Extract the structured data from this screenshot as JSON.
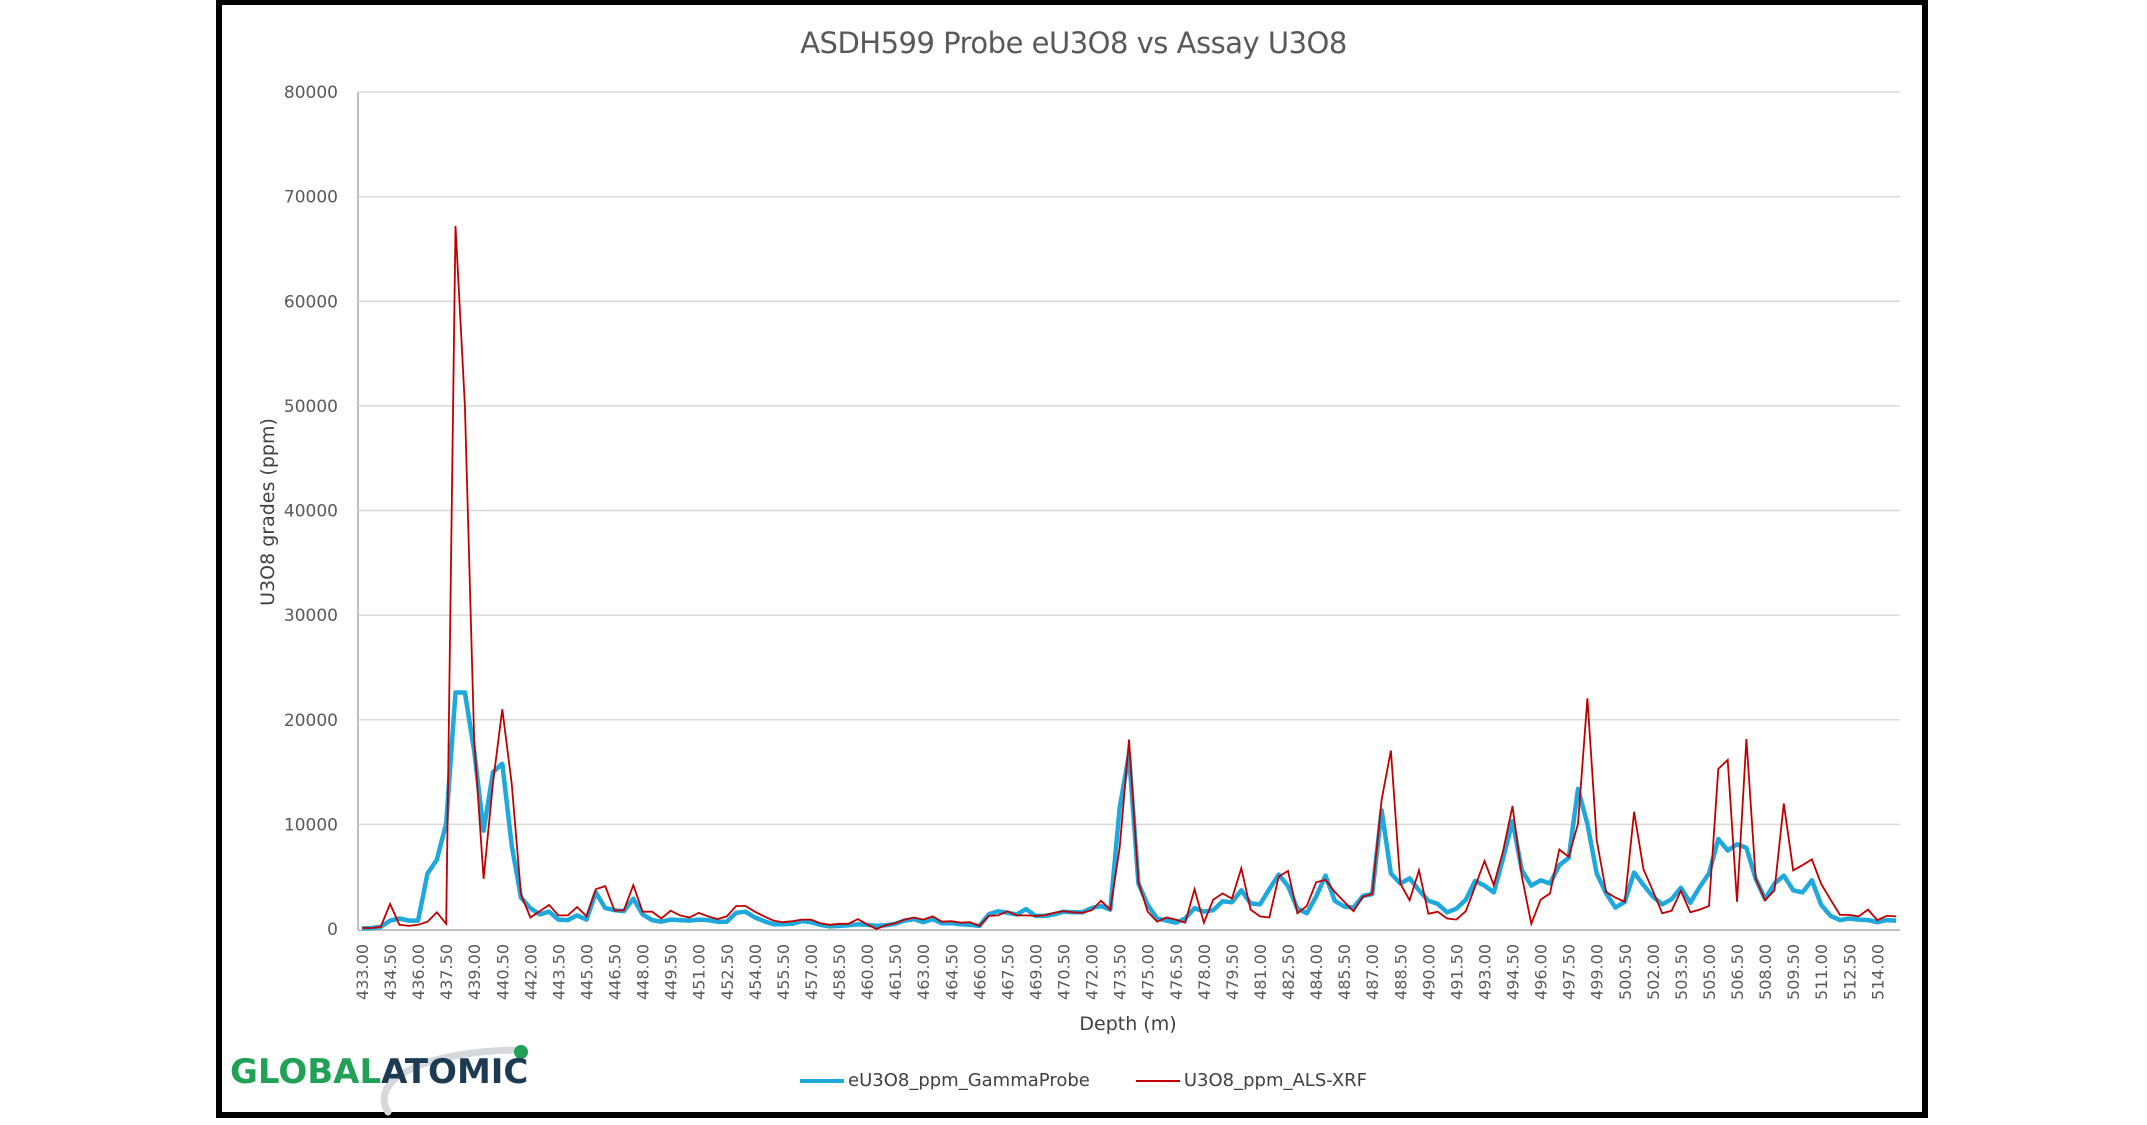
{
  "chart_data": {
    "type": "line",
    "title": "ASDH599 Probe eU3O8 vs Assay U3O8",
    "xlabel": "Depth (m)",
    "ylabel": "U3O8 grades (ppm)",
    "ylim": [
      0,
      80000
    ],
    "yticks": [
      0,
      10000,
      20000,
      30000,
      40000,
      50000,
      60000,
      70000,
      80000
    ],
    "xtick_labels": [
      "433.00",
      "434.50",
      "436.00",
      "437.50",
      "439.00",
      "440.50",
      "442.00",
      "443.50",
      "445.00",
      "446.50",
      "448.00",
      "449.50",
      "451.00",
      "452.50",
      "454.00",
      "455.50",
      "457.00",
      "458.50",
      "460.00",
      "461.50",
      "463.00",
      "464.50",
      "466.00",
      "467.50",
      "469.00",
      "470.50",
      "472.00",
      "473.50",
      "475.00",
      "476.50",
      "478.00",
      "479.50",
      "481.00",
      "482.50",
      "484.00",
      "485.50",
      "487.00",
      "488.50",
      "490.00",
      "491.50",
      "493.00",
      "494.50",
      "496.00",
      "497.50",
      "499.00",
      "500.50",
      "502.00",
      "503.50",
      "505.00",
      "506.50",
      "508.00",
      "509.50",
      "511.00",
      "512.50",
      "514.00"
    ],
    "grid": true,
    "legend_position": "bottom",
    "x_start": 433.0,
    "x_step": 0.5,
    "series": [
      {
        "name": "eU3O8_ppm_GammaProbe",
        "color": "#1ea8dc",
        "values": [
          50,
          100,
          200,
          800,
          1000,
          800,
          800,
          5300,
          6600,
          10100,
          22600,
          22600,
          17000,
          9400,
          15000,
          15800,
          8000,
          3000,
          2000,
          1400,
          1650,
          900,
          850,
          1300,
          900,
          3500,
          2000,
          1800,
          1700,
          2900,
          1400,
          850,
          700,
          900,
          850,
          800,
          900,
          850,
          700,
          700,
          1550,
          1650,
          1100,
          750,
          450,
          450,
          500,
          750,
          650,
          400,
          250,
          300,
          350,
          450,
          400,
          300,
          350,
          500,
          800,
          950,
          650,
          950,
          550,
          550,
          450,
          400,
          300,
          1400,
          1700,
          1550,
          1400,
          1900,
          1250,
          1250,
          1400,
          1650,
          1600,
          1600,
          2000,
          2200,
          1850,
          11600,
          16700,
          4350,
          2300,
          1000,
          800,
          600,
          1000,
          2000,
          1650,
          1800,
          2650,
          2550,
          3700,
          2450,
          2350,
          3800,
          5200,
          4100,
          1950,
          1500,
          3100,
          5100,
          2700,
          2150,
          2050,
          3150,
          3350,
          11350,
          5300,
          4350,
          4850,
          3700,
          2700,
          2400,
          1600,
          1950,
          2800,
          4600,
          4150,
          3500,
          6800,
          10300,
          5600,
          4150,
          4650,
          4350,
          6100,
          6800,
          13400,
          10050,
          5300,
          3400,
          2050,
          2600,
          5400,
          4200,
          3100,
          2350,
          2850,
          3950,
          2500,
          4000,
          5300,
          8600,
          7500,
          8100,
          7750,
          4800,
          2850,
          4350,
          5100,
          3700,
          3500,
          4650,
          2300,
          1250,
          850,
          1000,
          900,
          850,
          650,
          850,
          800
        ]
      },
      {
        "name": "U3O8_ppm_ALS-XRF",
        "color": "#c00000",
        "values": [
          100,
          100,
          200,
          2400,
          400,
          300,
          400,
          700,
          1600,
          500,
          67200,
          50000,
          18000,
          4800,
          14000,
          21000,
          13900,
          3300,
          1100,
          1700,
          2300,
          1300,
          1300,
          2100,
          1200,
          3800,
          4100,
          1750,
          1800,
          4200,
          1650,
          1650,
          1000,
          1750,
          1300,
          1100,
          1550,
          1200,
          950,
          1200,
          2200,
          2200,
          1650,
          1200,
          800,
          650,
          750,
          900,
          900,
          550,
          400,
          500,
          500,
          950,
          450,
          0,
          350,
          550,
          900,
          1100,
          900,
          1200,
          700,
          750,
          600,
          650,
          300,
          1250,
          1300,
          1700,
          1300,
          1300,
          1250,
          1300,
          1550,
          1700,
          1600,
          1550,
          1800,
          2700,
          1850,
          7800,
          18100,
          4500,
          1650,
          700,
          1100,
          900,
          600,
          3800,
          600,
          2800,
          3400,
          2900,
          5800,
          1850,
          1200,
          1100,
          5000,
          5550,
          1500,
          2200,
          4450,
          4700,
          3550,
          2600,
          1700,
          3100,
          3350,
          12350,
          17050,
          4350,
          2750,
          5600,
          1450,
          1650,
          1000,
          900,
          1700,
          4050,
          6500,
          4200,
          7500,
          11750,
          5000,
          500,
          2800,
          3400,
          7600,
          6900,
          10050,
          22050,
          8500,
          3550,
          3000,
          2600,
          11200,
          5700,
          3650,
          1500,
          1750,
          3650,
          1600,
          1850,
          2200,
          15300,
          16150,
          2600,
          18150,
          4800,
          2750,
          3700,
          12000,
          5600,
          6100,
          6650,
          4300,
          2800,
          1350,
          1350,
          1200,
          1850,
          850,
          1250,
          1200
        ]
      }
    ]
  },
  "legend": {
    "items": [
      {
        "label": "eU3O8_ppm_GammaProbe",
        "color": "#1ea8dc"
      },
      {
        "label": "U3O8_ppm_ALS-XRF",
        "color": "#c00000"
      }
    ]
  },
  "logo": {
    "part1": "GLOBAL",
    "part2": "ATOMIC",
    "color1": "#21a156",
    "color2": "#1c3a52"
  }
}
